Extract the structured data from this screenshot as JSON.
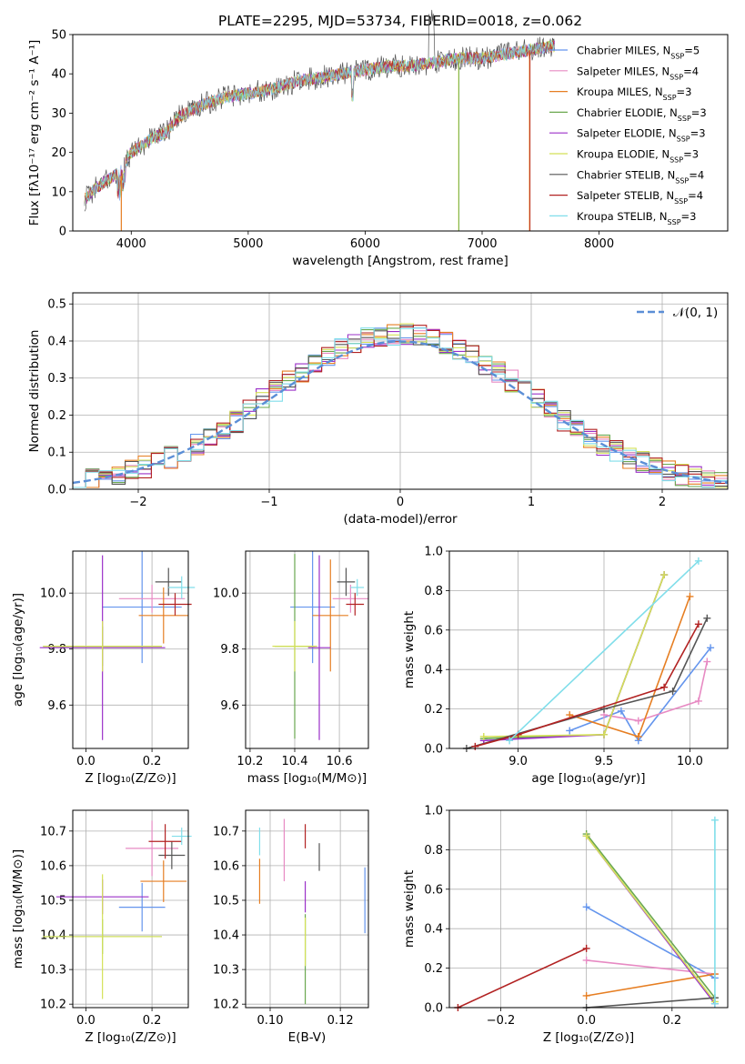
{
  "figure": {
    "title": "PLATE=2295, MJD=53734, FIBERID=0018, z=0.062",
    "colors": [
      "#6495ed",
      "#e78ac3",
      "#e67e22",
      "#6aa84f",
      "#9b30c8",
      "#d4e157",
      "#555555",
      "#b22222",
      "#80deea"
    ]
  },
  "chart_data": [
    {
      "id": "spectrum",
      "type": "line",
      "xlabel": "wavelength [Angstrom, rest frame]",
      "ylabel": "Flux [fλ10⁻¹⁷ erg cm⁻² s⁻¹ A⁻¹]",
      "xlim": [
        3500,
        9100
      ],
      "ylim": [
        0,
        50
      ],
      "xticks": [
        4000,
        5000,
        6000,
        7000,
        8000
      ],
      "yticks": [
        0,
        10,
        20,
        30,
        40,
        50
      ],
      "grid": false,
      "legend_position": "right",
      "legend": [
        "Chabrier MILES, N_SSP=5",
        "Salpeter MILES, N_SSP=4",
        "Kroupa MILES, N_SSP=3",
        "Chabrier ELODIE, N_SSP=3",
        "Salpeter ELODIE, N_SSP=3",
        "Kroupa ELODIE, N_SSP=3",
        "Chabrier STELIB, N_SSP=4",
        "Salpeter STELIB, N_SSP=4",
        "Kroupa STELIB, N_SSP=3"
      ],
      "continuum": {
        "x": [
          3600,
          3700,
          3800,
          3900,
          4000,
          4100,
          4200,
          4300,
          4400,
          4600,
          4800,
          5000,
          5200,
          5400,
          5600,
          5800,
          6000,
          6200,
          6400,
          6600,
          6800,
          7000,
          7200,
          7400,
          7600
        ],
        "y": [
          8,
          11,
          13,
          15,
          20,
          22,
          24,
          25,
          29,
          32,
          34,
          35,
          36,
          38,
          39,
          40,
          41,
          42,
          42,
          43,
          44,
          44,
          45,
          46,
          47
        ]
      }
    },
    {
      "id": "residuals",
      "type": "line",
      "xlabel": "(data-model)/error",
      "ylabel": "Normed distribution",
      "xlim": [
        -2.5,
        2.5
      ],
      "ylim": [
        0,
        0.53
      ],
      "xticks": [
        -2,
        -1,
        0,
        1,
        2
      ],
      "yticks": [
        0.0,
        0.1,
        0.2,
        0.3,
        0.4,
        0.5
      ],
      "grid": true,
      "legend_position": "top-right",
      "legend": [
        "𝒩(0, 1)"
      ],
      "gaussian": {
        "mean": 0,
        "sigma": 1
      }
    },
    {
      "id": "age-vs-Z",
      "type": "scatter",
      "xlabel": "Z [log₁₀(Z/Z⊙)]",
      "ylabel": "age  [log₁₀(age/yr)]",
      "xlim": [
        -0.04,
        0.31
      ],
      "ylim": [
        9.445,
        10.15
      ],
      "xticks": [
        0.0,
        0.2
      ],
      "yticks": [
        9.6,
        9.8,
        10.0
      ],
      "grid": true,
      "points": [
        {
          "x": 0.17,
          "y": 9.95,
          "xerr": 0.12,
          "yerr": 0.2
        },
        {
          "x": 0.2,
          "y": 9.98,
          "xerr": 0.1,
          "yerr": 0.05
        },
        {
          "x": 0.235,
          "y": 9.92,
          "xerr": 0.075,
          "yerr": 0.1
        },
        {
          "x": 0.05,
          "y": 9.81,
          "xerr": 0.18,
          "yerr": 0.07
        },
        {
          "x": 0.05,
          "y": 9.805,
          "xerr": 0.19,
          "yerr": 0.33
        },
        {
          "x": 0.05,
          "y": 9.81,
          "xerr": 0.18,
          "yerr": 0.09
        },
        {
          "x": 0.25,
          "y": 10.04,
          "xerr": 0.04,
          "yerr": 0.05
        },
        {
          "x": 0.27,
          "y": 9.96,
          "xerr": 0.05,
          "yerr": 0.04
        },
        {
          "x": 0.29,
          "y": 10.02,
          "xerr": 0.04,
          "yerr": 0.04
        }
      ]
    },
    {
      "id": "age-vs-mass",
      "type": "scatter",
      "xlabel": "mass [log₁₀(M/M⊙)]",
      "ylabel": "",
      "xlim": [
        10.18,
        10.73
      ],
      "ylim": [
        9.445,
        10.15
      ],
      "xticks": [
        10.2,
        10.4,
        10.6
      ],
      "yticks": [
        9.6,
        9.8,
        10.0
      ],
      "grid": true,
      "points": [
        {
          "x": 10.48,
          "y": 9.95,
          "xerr": 0.1,
          "yerr": 0.2
        },
        {
          "x": 10.65,
          "y": 9.98,
          "xerr": 0.08,
          "yerr": 0.05
        },
        {
          "x": 10.56,
          "y": 9.92,
          "xerr": 0.08,
          "yerr": 0.2
        },
        {
          "x": 10.4,
          "y": 9.81,
          "xerr": 0.09,
          "yerr": 0.33
        },
        {
          "x": 10.51,
          "y": 9.805,
          "xerr": 0.05,
          "yerr": 0.33
        },
        {
          "x": 10.4,
          "y": 9.81,
          "xerr": 0.1,
          "yerr": 0.09
        },
        {
          "x": 10.63,
          "y": 10.04,
          "xerr": 0.04,
          "yerr": 0.05
        },
        {
          "x": 10.67,
          "y": 9.96,
          "xerr": 0.04,
          "yerr": 0.04
        },
        {
          "x": 10.68,
          "y": 10.02,
          "xerr": 0.03,
          "yerr": 0.03
        }
      ]
    },
    {
      "id": "weight-vs-age",
      "type": "line",
      "xlabel": "age  [log₁₀(age/yr)]",
      "ylabel": "mass weight",
      "xlim": [
        8.6,
        10.22
      ],
      "ylim": [
        0,
        1
      ],
      "xticks": [
        9.0,
        9.5,
        10.0
      ],
      "yticks": [
        0.0,
        0.2,
        0.4,
        0.6,
        0.8,
        1.0
      ],
      "grid": true,
      "series": [
        {
          "x": [
            9.3,
            9.6,
            9.7,
            10.12
          ],
          "y": [
            0.09,
            0.19,
            0.04,
            0.51
          ]
        },
        {
          "x": [
            9.5,
            9.7,
            10.05,
            10.1
          ],
          "y": [
            0.17,
            0.14,
            0.24,
            0.44
          ]
        },
        {
          "x": [
            9.3,
            9.7,
            10.0
          ],
          "y": [
            0.17,
            0.06,
            0.77
          ]
        },
        {
          "x": [
            8.8,
            9.5,
            9.85
          ],
          "y": [
            0.05,
            0.07,
            0.88
          ]
        },
        {
          "x": [
            8.8,
            9.5,
            9.85
          ],
          "y": [
            0.04,
            0.07,
            0.88
          ]
        },
        {
          "x": [
            8.8,
            9.5,
            9.85
          ],
          "y": [
            0.06,
            0.07,
            0.88
          ]
        },
        {
          "x": [
            8.7,
            9.5,
            9.9,
            10.1
          ],
          "y": [
            0.0,
            0.2,
            0.29,
            0.66
          ]
        },
        {
          "x": [
            8.75,
            9.0,
            9.85,
            10.05
          ],
          "y": [
            0.01,
            0.07,
            0.31,
            0.63
          ]
        },
        {
          "x": [
            8.95,
            10.05
          ],
          "y": [
            0.04,
            0.95
          ]
        }
      ]
    },
    {
      "id": "mass-vs-Z",
      "type": "scatter",
      "xlabel": "Z [log₁₀(Z/Z⊙)]",
      "ylabel": "mass [log₁₀(M/M⊙)]",
      "xlim": [
        -0.04,
        0.31
      ],
      "ylim": [
        10.19,
        10.76
      ],
      "xticks": [
        0.0,
        0.2
      ],
      "yticks": [
        10.2,
        10.3,
        10.4,
        10.5,
        10.6,
        10.7
      ],
      "grid": true,
      "points": [
        {
          "x": 0.17,
          "y": 10.48,
          "xerr": 0.07,
          "yerr": 0.07
        },
        {
          "x": 0.2,
          "y": 10.65,
          "xerr": 0.08,
          "yerr": 0.08
        },
        {
          "x": 0.235,
          "y": 10.555,
          "xerr": 0.07,
          "yerr": 0.06
        },
        {
          "x": 0.05,
          "y": 10.395,
          "xerr": 0.18,
          "yerr": 0.05
        },
        {
          "x": 0.05,
          "y": 10.51,
          "xerr": 0.14,
          "yerr": 0.05
        },
        {
          "x": 0.05,
          "y": 10.395,
          "xerr": 0.18,
          "yerr": 0.18
        },
        {
          "x": 0.26,
          "y": 10.63,
          "xerr": 0.04,
          "yerr": 0.04
        },
        {
          "x": 0.24,
          "y": 10.67,
          "xerr": 0.05,
          "yerr": 0.05
        },
        {
          "x": 0.29,
          "y": 10.685,
          "xerr": 0.03,
          "yerr": 0.025
        }
      ]
    },
    {
      "id": "mass-vs-ebv",
      "type": "scatter",
      "xlabel": "E(B-V)",
      "ylabel": "",
      "xlim": [
        0.093,
        0.128
      ],
      "ylim": [
        10.19,
        10.76
      ],
      "xticks": [
        0.1,
        0.12
      ],
      "yticks": [
        10.2,
        10.3,
        10.4,
        10.5,
        10.6,
        10.7
      ],
      "grid": true,
      "points": [
        {
          "x": 0.127,
          "y": 10.5,
          "yerr": 0.095
        },
        {
          "x": 0.104,
          "y": 10.645,
          "yerr": 0.09
        },
        {
          "x": 0.097,
          "y": 10.555,
          "yerr": 0.065
        },
        {
          "x": 0.11,
          "y": 10.33,
          "yerr": 0.13
        },
        {
          "x": 0.11,
          "y": 10.51,
          "yerr": 0.045
        },
        {
          "x": 0.11,
          "y": 10.38,
          "yerr": 0.07
        },
        {
          "x": 0.114,
          "y": 10.625,
          "yerr": 0.04
        },
        {
          "x": 0.11,
          "y": 10.685,
          "yerr": 0.035
        },
        {
          "x": 0.097,
          "y": 10.67,
          "yerr": 0.04
        }
      ]
    },
    {
      "id": "weight-vs-Z",
      "type": "line",
      "xlabel": "Z [log₁₀(Z/Z⊙)]",
      "ylabel": "mass weight",
      "xlim": [
        -0.32,
        0.33
      ],
      "ylim": [
        0,
        1
      ],
      "xticks": [
        -0.2,
        0.0,
        0.2
      ],
      "yticks": [
        0.0,
        0.2,
        0.4,
        0.6,
        0.8,
        1.0
      ],
      "grid": true,
      "series": [
        {
          "x": [
            0.0,
            0.3
          ],
          "y": [
            0.51,
            0.15
          ]
        },
        {
          "x": [
            0.0,
            0.3
          ],
          "y": [
            0.24,
            0.17
          ]
        },
        {
          "x": [
            0.0,
            0.3
          ],
          "y": [
            0.06,
            0.17
          ]
        },
        {
          "x": [
            0.0,
            0.3
          ],
          "y": [
            0.88,
            0.05
          ]
        },
        {
          "x": [
            0.0,
            0.3
          ],
          "y": [
            0.87,
            0.02
          ]
        },
        {
          "x": [
            0.0,
            0.3
          ],
          "y": [
            0.87,
            0.03
          ]
        },
        {
          "x": [
            0.0,
            0.3
          ],
          "y": [
            0.0,
            0.05
          ]
        },
        {
          "x": [
            -0.3,
            0.0
          ],
          "y": [
            0.0,
            0.3
          ]
        },
        {
          "x": [
            0.3,
            0.3
          ],
          "y": [
            0.95,
            0.02
          ]
        }
      ]
    }
  ]
}
